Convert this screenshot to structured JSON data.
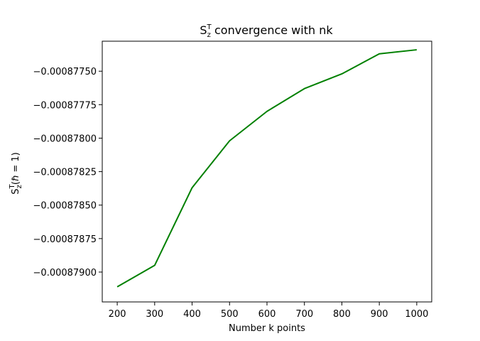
{
  "chart_data": {
    "type": "line",
    "title": {
      "main": "S",
      "sub": "z",
      "sup": "T",
      "rest": " convergence with nk"
    },
    "xlabel": "Number k points",
    "ylabel": {
      "main": "S",
      "sub": "z",
      "sup": "T",
      "rest": "(ℏ = 1)"
    },
    "x": [
      200,
      300,
      400,
      500,
      600,
      700,
      800,
      900,
      1000
    ],
    "series": [
      {
        "color": "#008000",
        "values": [
          -0.00087911,
          -0.00087895,
          -0.00087837,
          -0.00087802,
          -0.0008778,
          -0.00087763,
          -0.00087752,
          -0.00087737,
          -0.00087734
        ]
      }
    ],
    "xlim": [
      160,
      1040
    ],
    "ylim": [
      -0.000879223,
      -0.000877276
    ],
    "xticks": [
      200,
      300,
      400,
      500,
      600,
      700,
      800,
      900,
      1000
    ],
    "xtick_labels": [
      "200",
      "300",
      "400",
      "500",
      "600",
      "700",
      "800",
      "900",
      "1000"
    ],
    "yticks": [
      -0.000879,
      -0.00087875,
      -0.0008785,
      -0.00087825,
      -0.000878,
      -0.00087775,
      -0.0008775
    ],
    "ytick_labels": [
      "−0.00087900",
      "−0.00087875",
      "−0.00087850",
      "−0.00087825",
      "−0.00087800",
      "−0.00087775",
      "−0.00087750"
    ],
    "grid": false,
    "legend": false
  }
}
